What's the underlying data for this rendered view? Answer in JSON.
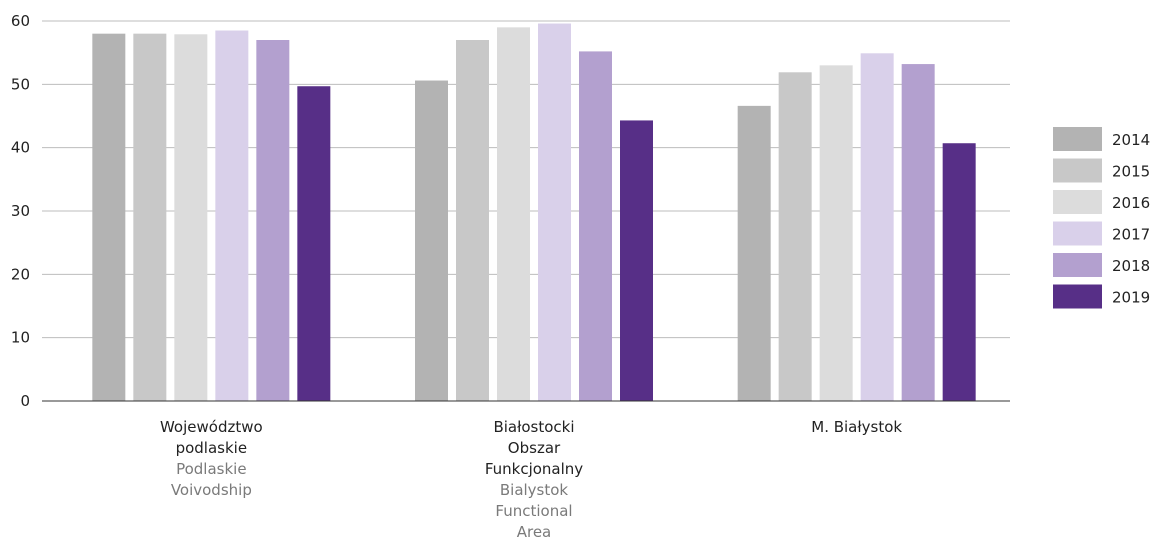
{
  "chart_data": {
    "type": "bar",
    "title": "",
    "xlabel": "",
    "ylabel": "",
    "ylim": [
      0,
      60
    ],
    "yticks": [
      0,
      10,
      20,
      30,
      40,
      50,
      60
    ],
    "grid": true,
    "legend_position": "right",
    "categories": [
      {
        "name_pl": [
          "Województwo",
          "podlaskie"
        ],
        "name_en": [
          "Podlaskie",
          "Voivodship"
        ]
      },
      {
        "name_pl": [
          "Białostocki",
          "Obszar",
          "Funkcjonalny"
        ],
        "name_en": [
          "Bialystok",
          "Functional",
          "Area"
        ]
      },
      {
        "name_pl": [
          "M. Białystok"
        ],
        "name_en": []
      }
    ],
    "series": [
      {
        "name": "2014",
        "color": "#b3b3b3",
        "values": [
          58.0,
          50.6,
          46.6
        ]
      },
      {
        "name": "2015",
        "color": "#c8c8c8",
        "values": [
          58.0,
          57.0,
          51.9
        ]
      },
      {
        "name": "2016",
        "color": "#dcdcdc",
        "values": [
          57.9,
          59.0,
          53.0
        ]
      },
      {
        "name": "2017",
        "color": "#d9d0ea",
        "values": [
          58.5,
          59.6,
          54.9
        ]
      },
      {
        "name": "2018",
        "color": "#b3a0cf",
        "values": [
          57.0,
          55.2,
          53.2
        ]
      },
      {
        "name": "2019",
        "color": "#572f87",
        "values": [
          49.7,
          44.3,
          40.7
        ]
      }
    ]
  }
}
